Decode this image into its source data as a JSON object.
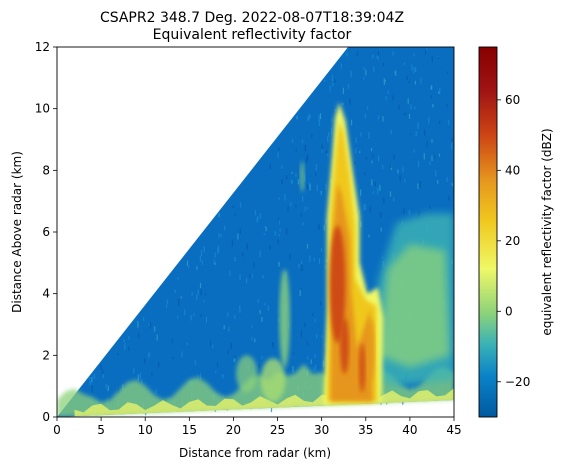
{
  "chart_data": {
    "type": "heatmap",
    "title": "CSAPR2 348.7 Deg. 2022-08-07T18:39:04Z",
    "subtitle": "Equivalent reflectivity factor",
    "xlabel": "Distance from radar (km)",
    "ylabel": "Distance Above radar  (km)",
    "xlim": [
      0,
      45
    ],
    "ylim": [
      0,
      12
    ],
    "xticks": [
      "0",
      "5",
      "10",
      "15",
      "20",
      "25",
      "30",
      "35",
      "40",
      "45"
    ],
    "yticks": [
      "0",
      "2",
      "4",
      "6",
      "8",
      "10",
      "12"
    ],
    "colorbar": {
      "label": "equivalent reflectivity factor (dBZ)",
      "range": [
        -30,
        75
      ],
      "ticks": [
        "−20",
        "0",
        "20",
        "40",
        "60"
      ],
      "colors": [
        "#005aa0",
        "#0a82c8",
        "#3cb4b4",
        "#8cd27a",
        "#eff866",
        "#f0c81e",
        "#e6961e",
        "#cd4614",
        "#a01414",
        "#870000"
      ]
    },
    "scan_wedge": {
      "upper_edge": [
        [
          0,
          0
        ],
        [
          33,
          12
        ]
      ],
      "lower_edge": [
        [
          0,
          0
        ],
        [
          45,
          0.55
        ]
      ]
    },
    "features": [
      {
        "name": "convective core",
        "x_range": [
          30,
          37
        ],
        "top_km": 10,
        "peak_dbz": 55
      },
      {
        "name": "anvil / stratiform",
        "x_range": [
          36,
          45
        ],
        "top_km": 6.5,
        "peak_dbz": 10
      },
      {
        "name": "low-level clutter",
        "x_range": [
          0,
          30
        ],
        "top_km": 1.5,
        "peak_dbz": 10
      }
    ]
  }
}
